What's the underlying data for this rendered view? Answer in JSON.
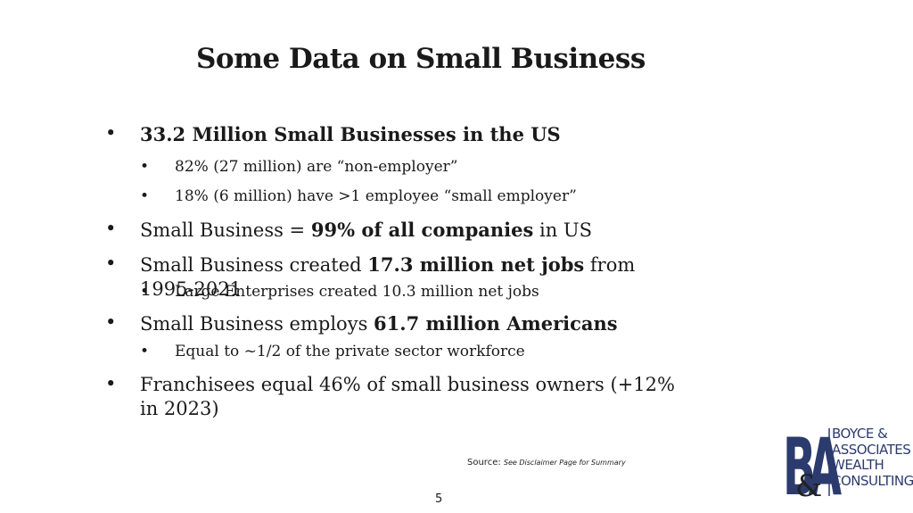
{
  "slide": {
    "title": "Some Data on Small Business",
    "bullet_1": {
      "bold": "33.2 Million Small Businesses in the US"
    },
    "bullet_1_sub_1": "82% (27 million) are “non-employer”",
    "bullet_1_sub_2": "18% (6 million) have >1 employee “small employer”",
    "bullet_2": {
      "pre": "Small Business = ",
      "bold": "99% of all companies",
      "post": " in US"
    },
    "bullet_3": {
      "pre": "Small Business created ",
      "bold": "17.3 million net jobs",
      "post": " from 1995-2021"
    },
    "bullet_3_sub_1": "Large Enterprises created 10.3 million net jobs",
    "bullet_4": {
      "pre": "Small Business employs ",
      "bold": "61.7 million Americans"
    },
    "bullet_4_sub_1": "Equal to ~1/2 of the private sector workforce",
    "bullet_5": "Franchisees equal 46% of small business owners (+12% in 2023)",
    "bullet_char": "•",
    "source_label": "Source:",
    "source_note": "See Disclaimer Page for Summary",
    "page_number": "5"
  },
  "logo": {
    "monogram_b": "B",
    "monogram_amp": "&",
    "monogram_a": "A",
    "line_1": "BOYCE &",
    "line_2": "ASSOCIATES",
    "line_3": "WEALTH",
    "line_4": "CONSULTING",
    "color": "#2c3b6e"
  }
}
